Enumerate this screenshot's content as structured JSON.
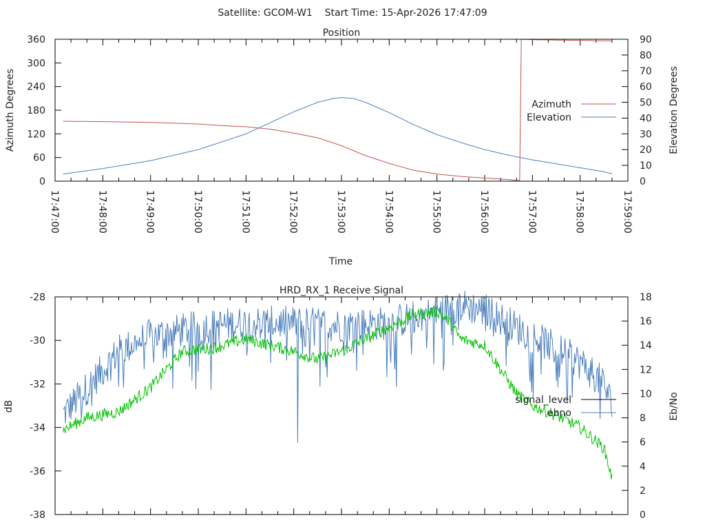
{
  "header": {
    "title": "Satellite: GCOM-W1    Start Time: 15-Apr-2026 17:47:09"
  },
  "chart_data": [
    {
      "type": "line",
      "title": "Position",
      "xlabel": "Time",
      "ylabel": "Azimuth Degrees",
      "y2label": "Elevation Degrees",
      "xlim_seconds": [
        0,
        720
      ],
      "x_origin": "17:47:00",
      "x_tick_labels": [
        "17:47:00",
        "17:48:00",
        "17:49:00",
        "17:50:00",
        "17:51:00",
        "17:52:00",
        "17:53:00",
        "17:54:00",
        "17:55:00",
        "17:56:00",
        "17:57:00",
        "17:58:00",
        "17:59:00"
      ],
      "ylim": [
        0,
        360
      ],
      "y_ticks": [
        "0",
        "60",
        "120",
        "180",
        "240",
        "300",
        "360"
      ],
      "y2lim": [
        0,
        90
      ],
      "y2_ticks": [
        "0",
        "10",
        "20",
        "30",
        "40",
        "50",
        "60",
        "70",
        "80",
        "90"
      ],
      "legend_position": "right",
      "series": [
        {
          "name": "Azimuth",
          "axis": "y",
          "color": "#c0504d",
          "x_seconds": [
            10,
            60,
            120,
            180,
            210,
            240,
            270,
            300,
            330,
            360,
            390,
            420,
            450,
            480,
            510,
            540,
            570,
            585,
            586,
            600,
            630,
            660,
            690,
            700
          ],
          "values": [
            152,
            151,
            149,
            145,
            141,
            138,
            132,
            122,
            110,
            90,
            65,
            45,
            28,
            18,
            12,
            8,
            4,
            1,
            360,
            359,
            358,
            357,
            356,
            356
          ]
        },
        {
          "name": "Elevation",
          "axis": "y2",
          "color": "#4a7ebb",
          "x_seconds": [
            10,
            60,
            120,
            180,
            240,
            270,
            300,
            330,
            350,
            360,
            375,
            390,
            420,
            450,
            480,
            510,
            540,
            570,
            600,
            630,
            660,
            690,
            700
          ],
          "values": [
            4.5,
            8,
            13,
            20,
            30,
            37,
            44,
            50,
            52.5,
            53,
            52.5,
            50,
            43.5,
            36,
            29.5,
            24.5,
            20,
            16.5,
            13.5,
            11,
            8.5,
            6,
            4.5
          ]
        }
      ]
    },
    {
      "type": "line",
      "title": "HRD_RX_1 Receive Signal",
      "xlabel": "",
      "ylabel": "dB",
      "y2label": "Eb/No",
      "xlim_seconds": [
        0,
        720
      ],
      "ylim": [
        -38,
        -28
      ],
      "y_ticks": [
        "-38",
        "-36",
        "-34",
        "-32",
        "-30",
        "-28"
      ],
      "y2lim": [
        0,
        18
      ],
      "y2_ticks": [
        "0",
        "2",
        "4",
        "6",
        "8",
        "10",
        "12",
        "14",
        "16",
        "18"
      ],
      "legend_position": "right",
      "legend": [
        {
          "name": "signal_level",
          "color": "#000000"
        },
        {
          "name": "ebno",
          "color": "#4a7ebb"
        }
      ],
      "series": [
        {
          "name": "signal_level (blue trace)",
          "axis": "y",
          "color": "#4a7ebb",
          "noise": 1.6,
          "x_seconds": [
            10,
            40,
            80,
            120,
            180,
            240,
            300,
            360,
            420,
            480,
            510,
            540,
            570,
            600,
            630,
            660,
            690,
            700
          ],
          "values": [
            -33.4,
            -32.2,
            -30.5,
            -29.8,
            -29.4,
            -29.2,
            -29.2,
            -29.3,
            -29.2,
            -28.7,
            -28.4,
            -28.6,
            -29.2,
            -29.8,
            -30.4,
            -31.0,
            -32.0,
            -33.0
          ]
        },
        {
          "name": "ebno (green trace)",
          "axis": "y2",
          "color": "#00c000",
          "noise": 1.0,
          "x_seconds": [
            10,
            40,
            80,
            120,
            160,
            200,
            240,
            300,
            330,
            360,
            390,
            420,
            450,
            480,
            495,
            510,
            540,
            560,
            580,
            600,
            630,
            660,
            690,
            700
          ],
          "values": [
            7,
            8,
            8.5,
            10.5,
            13.5,
            13.8,
            14.5,
            13.5,
            12.8,
            13.5,
            14.5,
            15.5,
            16.5,
            16.8,
            16,
            14.5,
            14,
            12,
            10,
            9,
            8.2,
            7.2,
            5.5,
            3
          ]
        }
      ]
    }
  ]
}
